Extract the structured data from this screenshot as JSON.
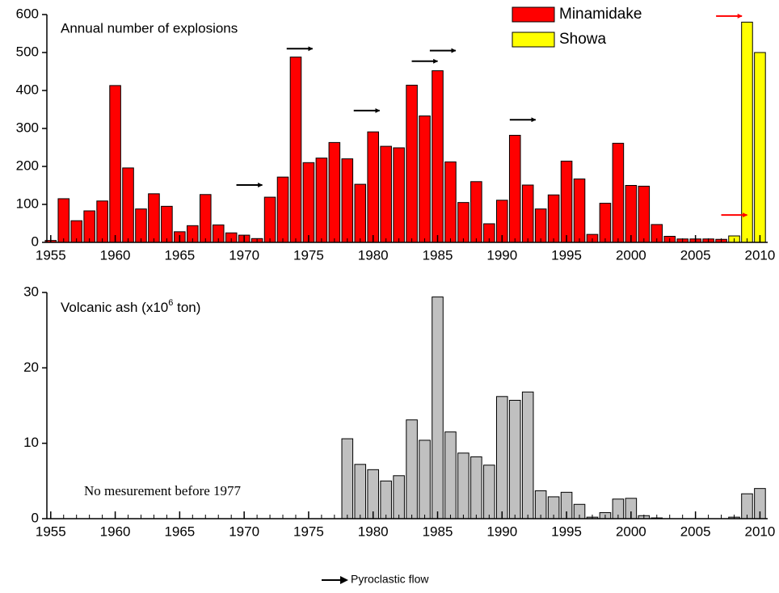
{
  "chart_data": [
    {
      "type": "bar",
      "title": "Annual number of explosions",
      "x": [
        1955,
        1956,
        1957,
        1958,
        1959,
        1960,
        1961,
        1962,
        1963,
        1964,
        1965,
        1966,
        1967,
        1968,
        1969,
        1970,
        1971,
        1972,
        1973,
        1974,
        1975,
        1976,
        1977,
        1978,
        1979,
        1980,
        1981,
        1982,
        1983,
        1984,
        1985,
        1986,
        1987,
        1988,
        1989,
        1990,
        1991,
        1992,
        1993,
        1994,
        1995,
        1996,
        1997,
        1998,
        1999,
        2000,
        2001,
        2002,
        2003,
        2004,
        2005,
        2006,
        2007,
        2008,
        2009,
        2010
      ],
      "series": [
        {
          "name": "Minamidake",
          "color": "#ff0000",
          "values": [
            5,
            115,
            57,
            83,
            109,
            413,
            196,
            88,
            128,
            95,
            28,
            44,
            126,
            46,
            25,
            19,
            10,
            119,
            172,
            488,
            210,
            222,
            263,
            220,
            153,
            291,
            253,
            249,
            414,
            333,
            452,
            212,
            105,
            160,
            49,
            111,
            282,
            151,
            88,
            125,
            214,
            167,
            21,
            103,
            261,
            150,
            148,
            47,
            16,
            9,
            9,
            9,
            8,
            null,
            null,
            null
          ]
        },
        {
          "name": "Showa",
          "color": "#ffff00",
          "values": [
            null,
            null,
            null,
            null,
            null,
            null,
            null,
            null,
            null,
            null,
            null,
            null,
            null,
            null,
            null,
            null,
            null,
            null,
            null,
            null,
            null,
            null,
            null,
            null,
            null,
            null,
            null,
            null,
            null,
            null,
            null,
            null,
            null,
            null,
            null,
            null,
            null,
            null,
            null,
            null,
            null,
            null,
            null,
            null,
            null,
            null,
            null,
            null,
            null,
            null,
            null,
            null,
            null,
            17,
            580,
            500
          ]
        }
      ],
      "pyroclastic_flows": [
        {
          "x": 1970.4,
          "y": 151,
          "color": "#000000"
        },
        {
          "x": 1974.3,
          "y": 510,
          "color": "#000000"
        },
        {
          "x": 1979.5,
          "y": 347,
          "color": "#000000"
        },
        {
          "x": 1984,
          "y": 477,
          "color": "#000000"
        },
        {
          "x": 1985.4,
          "y": 505,
          "color": "#000000"
        },
        {
          "x": 1991.6,
          "y": 323,
          "color": "#000000"
        },
        {
          "x": 2008,
          "y": 72,
          "color": "#ff0000"
        },
        {
          "x": 2007.6,
          "y": 596,
          "color": "#ff0000"
        }
      ],
      "xlim": [
        1954.7,
        2010.6
      ],
      "xticks": [
        1955,
        1960,
        1965,
        1970,
        1975,
        1980,
        1985,
        1990,
        1995,
        2000,
        2005,
        2010
      ],
      "ylim": [
        0,
        600
      ],
      "yticks": [
        0,
        100,
        200,
        300,
        400,
        500,
        600
      ]
    },
    {
      "type": "bar",
      "title": [
        "Volcanic ash (x10",
        "6",
        " ton)"
      ],
      "note": "No mesurement before 1977",
      "x": [
        1955,
        1956,
        1957,
        1958,
        1959,
        1960,
        1961,
        1962,
        1963,
        1964,
        1965,
        1966,
        1967,
        1968,
        1969,
        1970,
        1971,
        1972,
        1973,
        1974,
        1975,
        1976,
        1977,
        1978,
        1979,
        1980,
        1981,
        1982,
        1983,
        1984,
        1985,
        1986,
        1987,
        1988,
        1989,
        1990,
        1991,
        1992,
        1993,
        1994,
        1995,
        1996,
        1997,
        1998,
        1999,
        2000,
        2001,
        2002,
        2003,
        2004,
        2005,
        2006,
        2007,
        2008,
        2009,
        2010
      ],
      "series": [
        {
          "color": "#c0c0c0",
          "values": [
            null,
            null,
            null,
            null,
            null,
            null,
            null,
            null,
            null,
            null,
            null,
            null,
            null,
            null,
            null,
            null,
            null,
            null,
            null,
            null,
            null,
            null,
            null,
            10.6,
            7.2,
            6.5,
            5.0,
            5.7,
            13.1,
            10.4,
            29.4,
            11.5,
            8.7,
            8.2,
            7.1,
            16.2,
            15.7,
            16.8,
            3.7,
            2.9,
            3.5,
            1.9,
            0.2,
            0.8,
            2.6,
            2.7,
            0.4,
            0.1,
            0,
            0,
            0,
            0,
            0,
            0.2,
            3.3,
            4.0
          ]
        }
      ],
      "xlim": [
        1954.7,
        2010.6
      ],
      "xticks": [
        1955,
        1960,
        1965,
        1970,
        1975,
        1980,
        1985,
        1990,
        1995,
        2000,
        2005,
        2010
      ],
      "ylim": [
        0,
        30
      ],
      "yticks": [
        0,
        10,
        20,
        30
      ]
    }
  ],
  "footnote": "Pyroclastic flow"
}
